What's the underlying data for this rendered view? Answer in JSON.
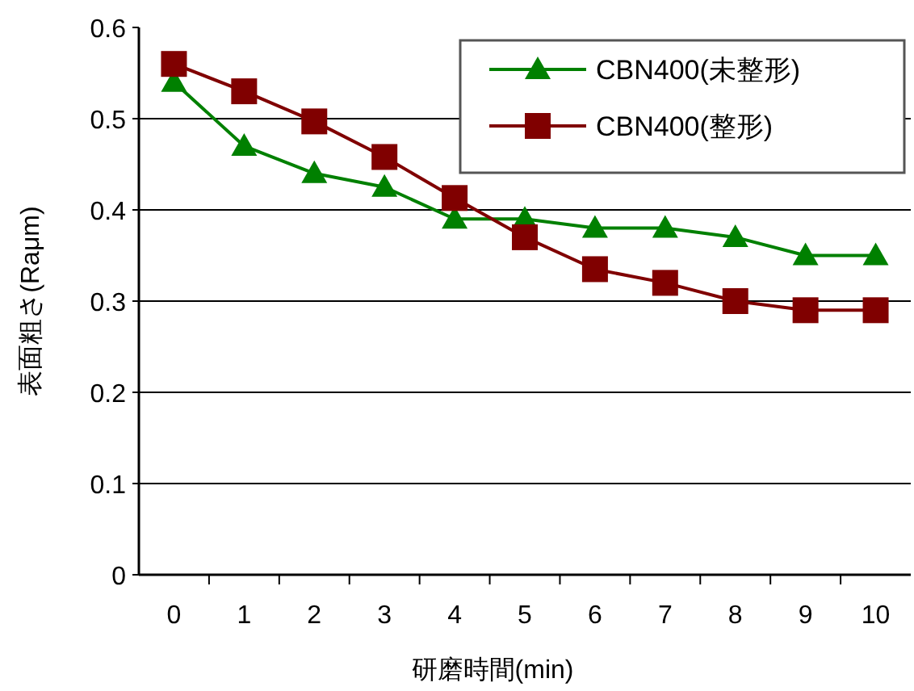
{
  "chart_data": {
    "type": "line",
    "xlabel": "研磨時間(min)",
    "ylabel": "表面粗さ(Raμm)",
    "categories": [
      "0",
      "1",
      "2",
      "3",
      "4",
      "5",
      "6",
      "7",
      "8",
      "9",
      "10"
    ],
    "series": [
      {
        "name": "CBN400(未整形)",
        "color": "#008000",
        "marker": "triangle",
        "values": [
          0.54,
          0.47,
          0.44,
          0.425,
          0.39,
          0.39,
          0.38,
          0.38,
          0.37,
          0.35,
          0.35
        ]
      },
      {
        "name": "CBN400(整形)",
        "color": "#800000",
        "marker": "square",
        "values": [
          0.56,
          0.53,
          0.497,
          0.458,
          0.413,
          0.37,
          0.335,
          0.32,
          0.3,
          0.29,
          0.29
        ]
      }
    ],
    "ylim": [
      0,
      0.6
    ],
    "yticks": [
      0,
      0.1,
      0.2,
      0.3,
      0.4,
      0.5,
      0.6
    ],
    "grid": "y",
    "legend": "top right",
    "line_style": "solid"
  }
}
